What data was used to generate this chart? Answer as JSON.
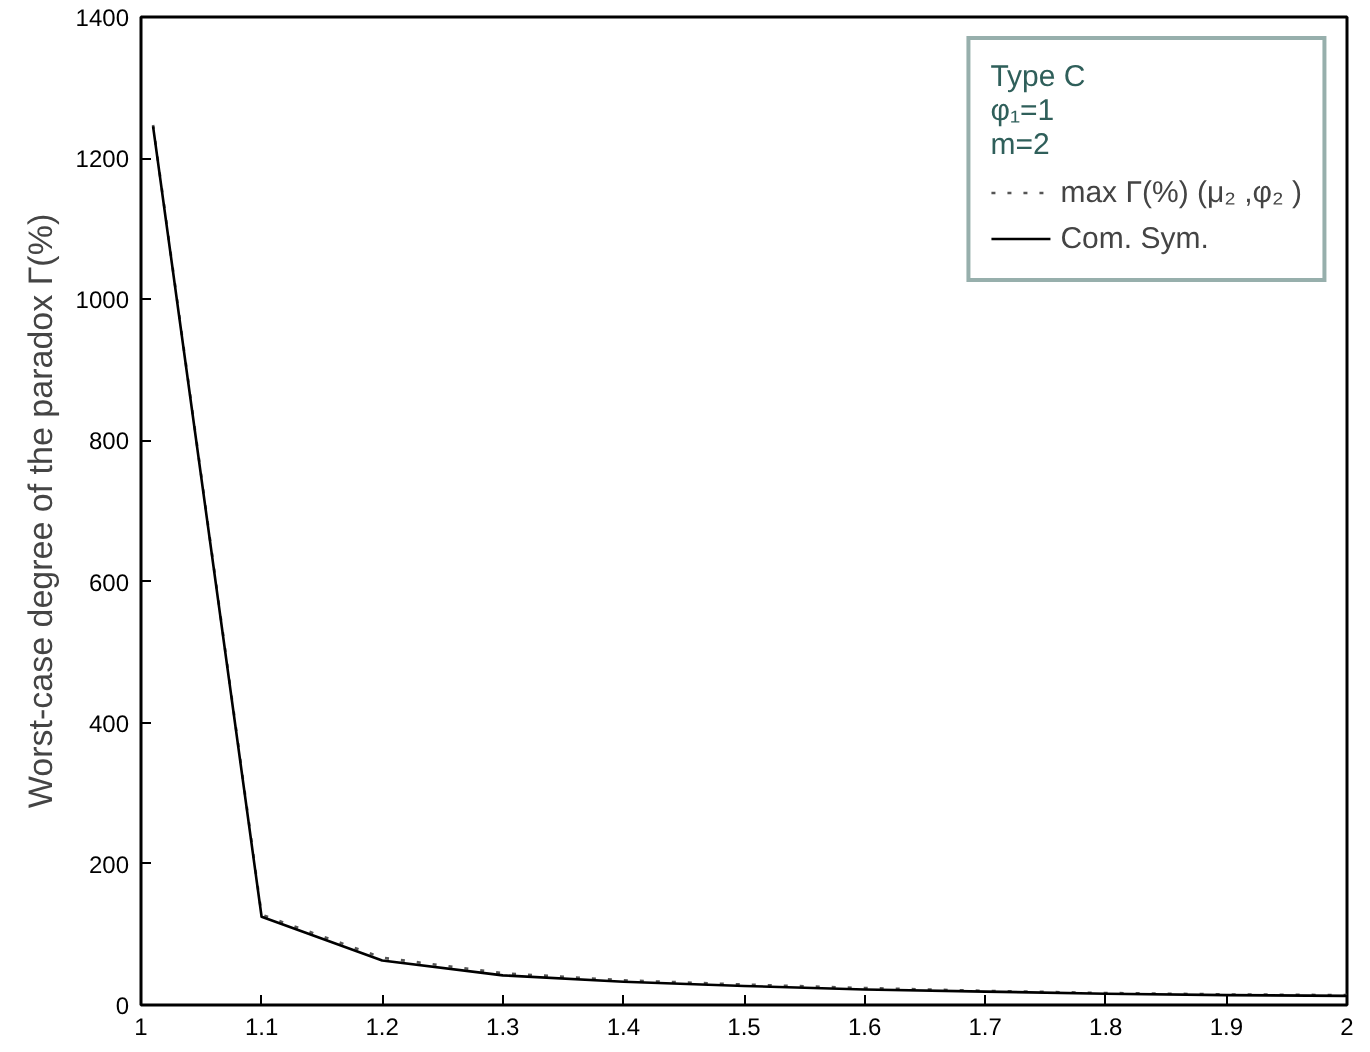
{
  "chart_data": {
    "type": "line",
    "ylabel": "Worst-case degree of the paradox Γ(%)",
    "legend_title": "Type C\nφ₁=1\nm=2",
    "legend": "top right",
    "grid": false,
    "x": [
      1.01,
      1.1,
      1.2,
      1.3,
      1.4,
      1.5,
      1.6,
      1.7,
      1.8,
      1.9,
      2.0
    ],
    "series": [
      {
        "name": "max Γ(%) (μ₂ ,φ₂ )",
        "color": "#555555",
        "line_style": "dotted",
        "values": [
          1247,
          128,
          67,
          45,
          35,
          29,
          24,
          20,
          17,
          15,
          14
        ]
      },
      {
        "name": "Com. Sym.",
        "color": "#000000",
        "line_style": "solid",
        "values": [
          1245,
          125,
          63,
          42,
          33,
          27,
          22,
          19,
          16,
          14,
          13
        ]
      }
    ],
    "xlim": [
      1,
      2
    ],
    "xticks": [
      1,
      1.1,
      1.2,
      1.3,
      1.4,
      1.5,
      1.6,
      1.7,
      1.8,
      1.9,
      2
    ],
    "ylim": [
      0,
      1400
    ],
    "yticks": [
      0,
      200,
      400,
      600,
      800,
      1000,
      1200,
      1400
    ]
  }
}
